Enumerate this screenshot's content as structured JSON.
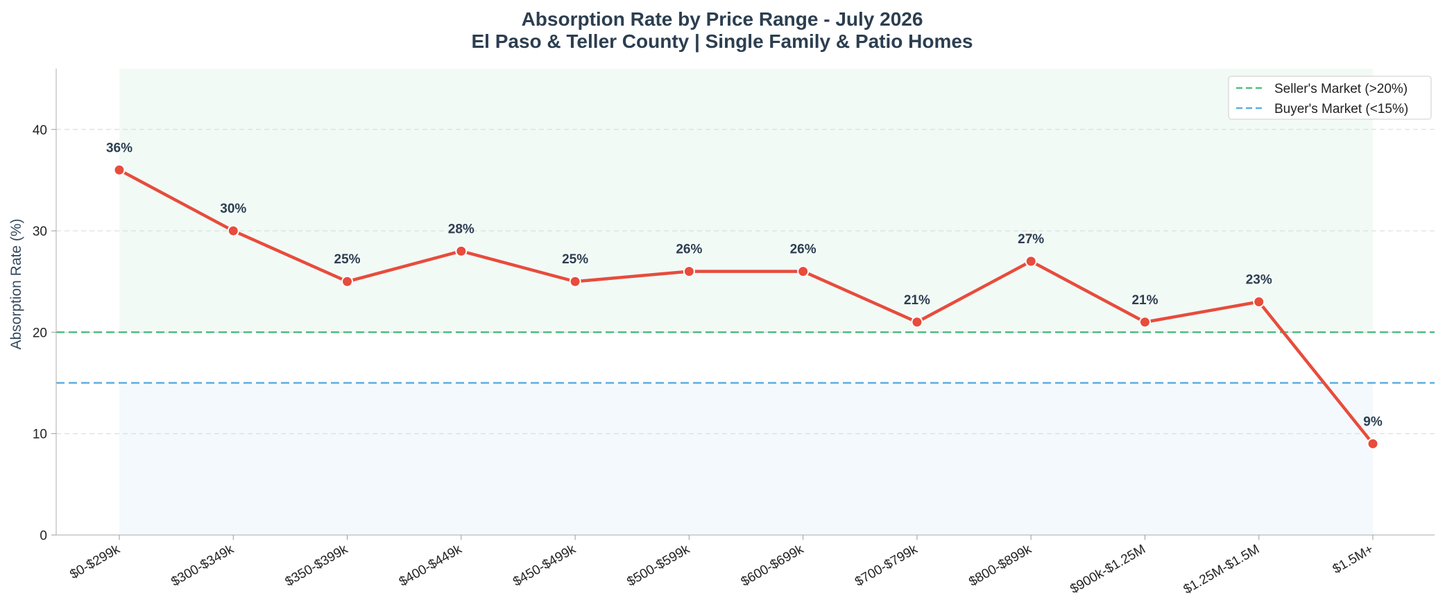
{
  "chart_data": {
    "type": "line",
    "title": "Absorption Rate by Price Range - July 2026",
    "subtitle": "El Paso & Teller County | Single Family & Patio Homes",
    "xlabel": "",
    "ylabel": "Absorption Rate (%)",
    "ylim": [
      0,
      46
    ],
    "yticks": [
      "0",
      "10",
      "20",
      "30",
      "40"
    ],
    "grid": true,
    "legend_position": "top-right",
    "categories": [
      "$0-$299k",
      "$300-$349k",
      "$350-$399k",
      "$400-$449k",
      "$450-$499k",
      "$500-$599k",
      "$600-$699k",
      "$700-$799k",
      "$800-$899k",
      "$900k-$1.25M",
      "$1.25M-$1.5M",
      "$1.5M+"
    ],
    "series": [
      {
        "values": [
          36,
          30,
          25,
          28,
          25,
          26,
          26,
          21,
          27,
          21,
          23,
          9
        ],
        "labels": [
          "36%",
          "30%",
          "25%",
          "28%",
          "25%",
          "26%",
          "26%",
          "21%",
          "27%",
          "21%",
          "23%",
          "9%"
        ],
        "color": "#e74c3c"
      }
    ],
    "reference_lines": [
      {
        "name": "Seller's Market (>20%)",
        "value": 20,
        "color": "#27ae60"
      },
      {
        "name": "Buyer's Market (<15%)",
        "value": 15,
        "color": "#3498db"
      }
    ],
    "shaded_zones": [
      {
        "from": 20,
        "to": 46,
        "color": "#27ae60"
      },
      {
        "from": 0,
        "to": 15,
        "color": "#3498db"
      }
    ]
  }
}
